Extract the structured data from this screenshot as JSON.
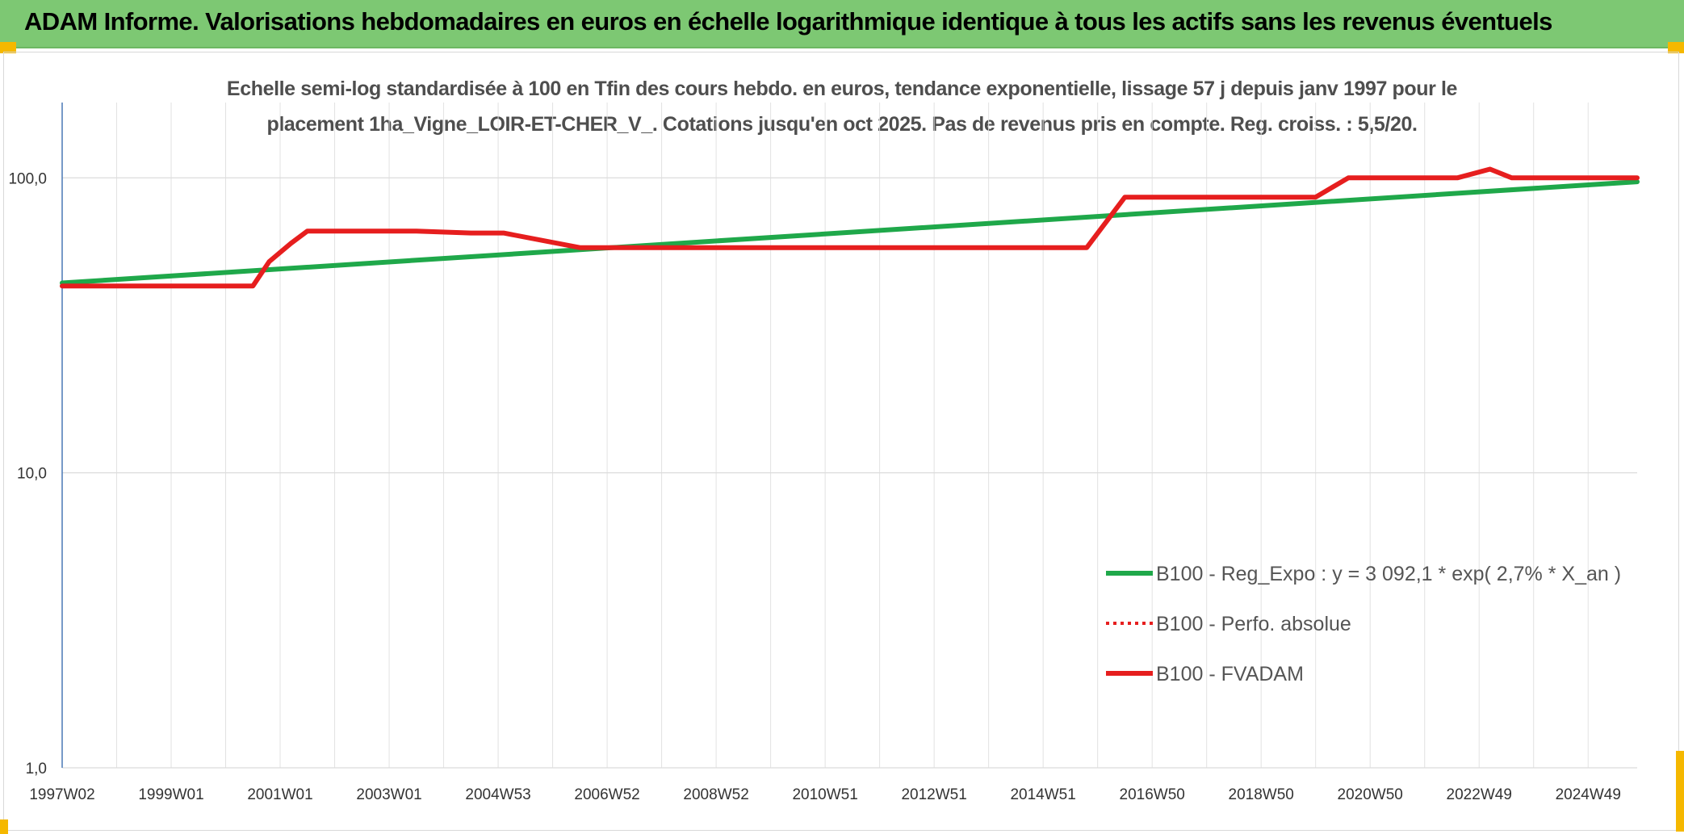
{
  "header": {
    "title": "ADAM Informe. Valorisations hebdomadaires en euros en échelle logarithmique identique à tous les actifs sans les revenus éventuels"
  },
  "chart_data": {
    "type": "line",
    "title": "Echelle semi-log standardisée à 100 en Tfin des cours hebdo. en euros, tendance exponentielle, lissage 57 j depuis janv 1997 pour le placement 1ha_Vigne_LOIR-ET-CHER_V_. Cotations jusqu'en oct 2025. Pas de revenus pris en compte. Reg. croiss. : 5,5/20.",
    "title_lines": [
      "Echelle semi-log standardisée à 100 en Tfin des cours hebdo. en euros, tendance exponentielle, lissage 57 j depuis janv 1997 pour le",
      "placement 1ha_Vigne_LOIR-ET-CHER_V_. Cotations jusqu'en oct 2025. Pas de revenus pris en compte. Reg. croiss. : 5,5/20."
    ],
    "y_scale": "log",
    "ylim": [
      1,
      180
    ],
    "y_ticks": [
      1,
      10,
      100
    ],
    "y_tick_labels": [
      "1,0",
      "10,0",
      "100,0"
    ],
    "xlim": [
      1997.0,
      2025.9
    ],
    "x_ticks": [
      1997.0,
      1999.0,
      2001.0,
      2003.0,
      2005.0,
      2007.0,
      2009.0,
      2011.0,
      2013.0,
      2015.0,
      2017.0,
      2019.0,
      2021.0,
      2023.0,
      2025.0
    ],
    "x_tick_labels": [
      "1997W02",
      "1999W01",
      "2001W01",
      "2003W01",
      "2004W53",
      "2006W52",
      "2008W52",
      "2010W51",
      "2012W51",
      "2014W51",
      "2016W50",
      "2018W50",
      "2020W50",
      "2022W49",
      "2024W49"
    ],
    "grid": true,
    "legend_position": "bottom-right",
    "series": [
      {
        "name": "B100 - Reg_Expo : y = 3 092,1 * exp( 2,7% *  X_an )",
        "color": "#1fa84a",
        "dash": "solid",
        "x": [
          1997.0,
          2025.9
        ],
        "y": [
          44,
          97
        ]
      },
      {
        "name": "B100 - Perfo. absolue",
        "color": "#e61e1e",
        "dash": "dotted",
        "x": [],
        "y": []
      },
      {
        "name": "B100 - FVADAM",
        "color": "#e61e1e",
        "dash": "solid",
        "x": [
          1997.0,
          2000.5,
          2000.8,
          2001.2,
          2001.5,
          2003.5,
          2004.5,
          2005.1,
          2006.5,
          2014.6,
          2015.0,
          2015.8,
          2016.5,
          2019.2,
          2020.0,
          2020.6,
          2021.5,
          2022.6,
          2023.2,
          2023.6,
          2025.0,
          2025.9
        ],
        "y": [
          43,
          43,
          52,
          60,
          66,
          66,
          65,
          65,
          58,
          58,
          58,
          58,
          86,
          86,
          86,
          100,
          100,
          100,
          107,
          100,
          100,
          100
        ]
      }
    ]
  }
}
